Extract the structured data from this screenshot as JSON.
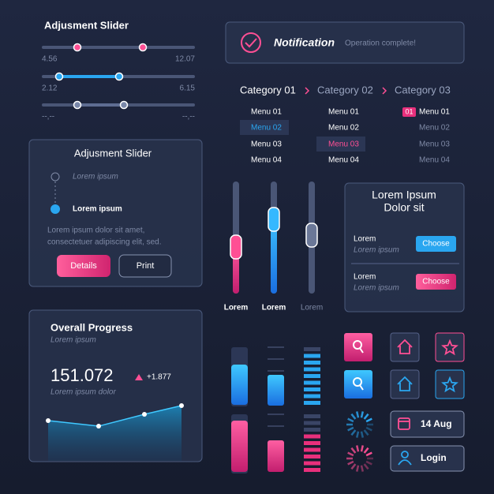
{
  "top_slider": {
    "title": "Adjusment Slider",
    "sliders": [
      {
        "min_label": "4.56",
        "max_label": "12.07"
      },
      {
        "min_label": "2.12",
        "max_label": "6.15"
      },
      {
        "min_label": "--,--",
        "max_label": "--,--"
      }
    ]
  },
  "notification": {
    "title": "Notification",
    "message": "Operation complete!"
  },
  "categories": [
    "Category 01",
    "Category 02",
    "Category 03"
  ],
  "menus": [
    [
      "Menu 01",
      "Menu 02",
      "Menu 03",
      "Menu 04"
    ],
    [
      "Menu 01",
      "Menu 02",
      "Menu 03",
      "Menu 04"
    ],
    [
      "Menu 01",
      "Menu 02",
      "Menu 03",
      "Menu 04"
    ]
  ],
  "menu_badge": "01",
  "slider_card": {
    "title": "Adjusment Slider",
    "steps": [
      "Lorem ipsum",
      "Lorem ipsum"
    ],
    "text_lines": [
      "Lorem ipsum dolor sit amet,",
      "consectetuer adipiscing elit, sed."
    ],
    "buttons": [
      "Details",
      "Print"
    ]
  },
  "vertical_sliders": {
    "labels": [
      "Lorem",
      "Lorem",
      "Lorem"
    ]
  },
  "choose_card": {
    "title_lines": [
      "Lorem Ipsum",
      "Dolor sit"
    ],
    "rows": [
      {
        "title": "Lorem",
        "subtitle": "Lorem ipsum",
        "button": "Choose"
      },
      {
        "title": "Lorem",
        "subtitle": "Lorem ipsum",
        "button": "Choose"
      }
    ]
  },
  "progress_card": {
    "title": "Overall Progress",
    "subtitle": "Lorem ipsum",
    "value": "151.072",
    "change": "+1.877",
    "caption": "Lorem ipsum dolor"
  },
  "date_button": "14 Aug",
  "login_button": "Login"
}
